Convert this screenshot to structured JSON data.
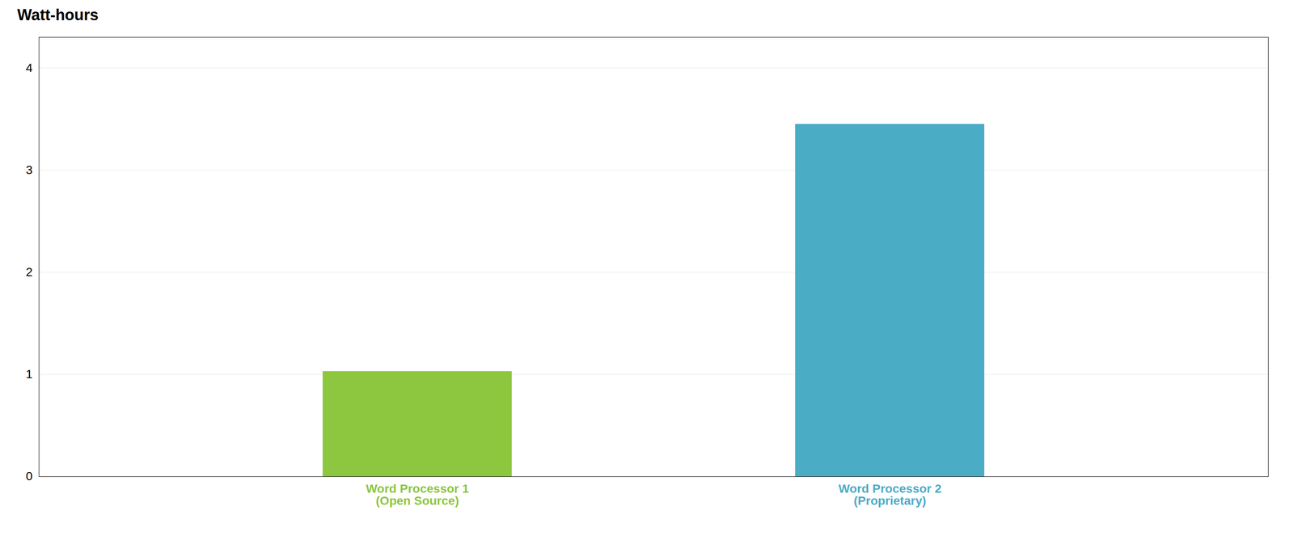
{
  "chart_data": {
    "type": "bar",
    "title": "Watt-hours",
    "categories": [
      "Word Processor 1\n(Open Source)",
      "Word Processor 2\n(Proprietary)"
    ],
    "values": [
      1.03,
      3.45
    ],
    "colors": [
      "#8DC63F",
      "#4BACC6"
    ],
    "ylim": [
      0,
      4.3
    ],
    "yticks": [
      0,
      1,
      2,
      3,
      4
    ],
    "grid": true
  }
}
